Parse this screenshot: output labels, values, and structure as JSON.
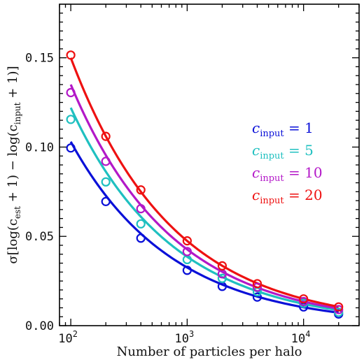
{
  "chart_data": {
    "type": "scatter",
    "xlabel": "Number of particles per halo",
    "ylabel": {
      "prefix": "σ[log(c",
      "sub1": "est",
      "mid": " + 1) − log(c",
      "sub2": "input",
      "suffix": " + 1)]"
    },
    "x_scale": "log",
    "xlim": [
      80,
      30000
    ],
    "ylim": [
      0.0,
      0.18
    ],
    "grid": false,
    "legend_position": "right",
    "x": [
      100,
      200,
      400,
      1000,
      2000,
      4000,
      10000,
      20000
    ],
    "x_ticks": [
      {
        "value": 100,
        "base": "10",
        "exp": "2"
      },
      {
        "value": 1000,
        "base": "10",
        "exp": "3"
      },
      {
        "value": 10000,
        "base": "10",
        "exp": "4"
      }
    ],
    "y_ticks": [
      {
        "value": 0.0,
        "label": "0.00"
      },
      {
        "value": 0.05,
        "label": "0.05"
      },
      {
        "value": 0.1,
        "label": "0.10"
      },
      {
        "value": 0.15,
        "label": "0.15"
      }
    ],
    "series": [
      {
        "name_var": "c",
        "name_sub": "input",
        "name_rest": " = 1",
        "color": "#0a10d8",
        "values": [
          0.0995,
          0.0695,
          0.049,
          0.031,
          0.022,
          0.016,
          0.0105,
          0.0065
        ],
        "fit_amp": 0.103
      },
      {
        "name_var": "c",
        "name_sub": "input",
        "name_rest": " = 5",
        "color": "#1fc0c0",
        "values": [
          0.1155,
          0.0805,
          0.057,
          0.037,
          0.0265,
          0.019,
          0.0125,
          0.0075
        ],
        "fit_amp": 0.122
      },
      {
        "name_var": "c",
        "name_sub": "input",
        "name_rest": " = 10",
        "color": "#b318c8",
        "values": [
          0.1305,
          0.092,
          0.0655,
          0.0415,
          0.029,
          0.0215,
          0.0135,
          0.009
        ],
        "fit_amp": 0.135
      },
      {
        "name_var": "c",
        "name_sub": "input",
        "name_rest": " = 20",
        "color": "#ee1111",
        "values": [
          0.1515,
          0.106,
          0.076,
          0.0475,
          0.0335,
          0.0235,
          0.015,
          0.0105
        ],
        "fit_amp": 0.15
      }
    ]
  }
}
